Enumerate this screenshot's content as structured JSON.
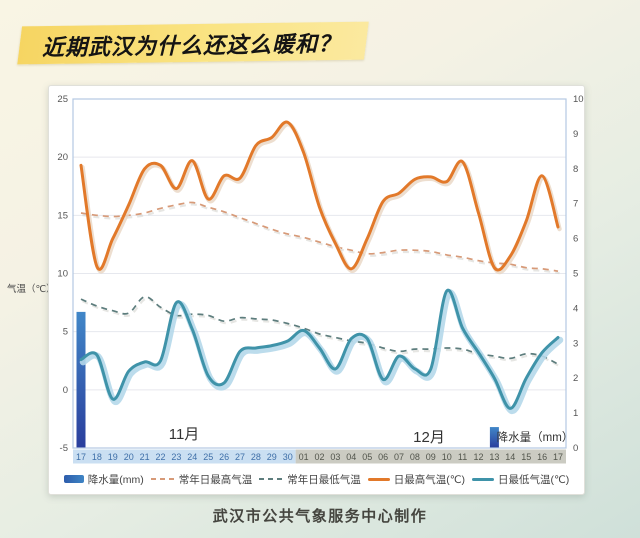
{
  "title": "近期武汉为什么还这么暖和？",
  "caption": "武汉市公共气象服务中心制作",
  "axes": {
    "temp_axis_label": "气温（℃）",
    "precip_axis_label": "降水量（mm）",
    "month_labels": {
      "november": "11月",
      "december": "12月"
    }
  },
  "legend": [
    {
      "label": "降水量(mm)",
      "type": "bar",
      "color": "#2e6cb5"
    },
    {
      "label": "常年日最高气温",
      "type": "dashed",
      "color": "#d79a78"
    },
    {
      "label": "常年日最低气温",
      "type": "dashed",
      "color": "#5d7d7d"
    },
    {
      "label": "日最高气温(℃)",
      "type": "line",
      "color": "#e2792a"
    },
    {
      "label": "日最低气温(℃)",
      "type": "line",
      "color": "#3f93a9"
    }
  ],
  "chart_data": {
    "type": "line+bar",
    "categories": [
      "17",
      "18",
      "19",
      "20",
      "21",
      "22",
      "23",
      "24",
      "25",
      "26",
      "27",
      "28",
      "29",
      "30",
      "01",
      "02",
      "03",
      "04",
      "05",
      "06",
      "07",
      "08",
      "09",
      "10",
      "11",
      "12",
      "13",
      "14",
      "15",
      "16",
      "17"
    ],
    "november_days": 14,
    "left_axis": {
      "label": "气温（℃）",
      "min": -5,
      "max": 25,
      "ticks": [
        25,
        20,
        15,
        10,
        5,
        0,
        -5
      ]
    },
    "right_axis": {
      "label": "降水量（mm）",
      "min": 0,
      "max": 10,
      "ticks": [
        10,
        9,
        8,
        7,
        6,
        5,
        4,
        3,
        2,
        1,
        0
      ]
    },
    "grid": "horizontal-only",
    "legend_position": "bottom",
    "series": [
      {
        "name": "日最高气温(℃)",
        "axis": "left",
        "style": "solid",
        "color": "#e2792a",
        "values": [
          19.3,
          10.6,
          13.0,
          15.9,
          19.0,
          19.3,
          17.3,
          19.7,
          16.4,
          18.4,
          18.2,
          21.0,
          21.7,
          23.0,
          20.4,
          15.7,
          12.6,
          10.4,
          13.0,
          16.2,
          16.9,
          18.1,
          18.3,
          17.9,
          19.6,
          15.2,
          10.5,
          11.5,
          14.5,
          18.4,
          14.0
        ]
      },
      {
        "name": "常年日最高气温",
        "axis": "left",
        "style": "dashed",
        "color": "#d79a78",
        "values": [
          15.2,
          15.0,
          14.9,
          15.0,
          15.2,
          15.6,
          15.9,
          16.1,
          15.7,
          15.3,
          14.8,
          14.3,
          13.8,
          13.4,
          13.1,
          12.7,
          12.3,
          12.0,
          11.7,
          11.8,
          12.0,
          12.0,
          11.9,
          11.6,
          11.4,
          11.1,
          10.9,
          10.8,
          10.5,
          10.4,
          10.2
        ]
      },
      {
        "name": "日最低气温(℃)",
        "axis": "left",
        "style": "solid",
        "color": "#3f93a9",
        "values": [
          2.6,
          3.0,
          -0.8,
          1.6,
          2.4,
          2.5,
          7.5,
          5.2,
          1.2,
          0.6,
          3.3,
          3.6,
          3.8,
          4.2,
          5.1,
          3.6,
          1.8,
          4.4,
          4.4,
          0.9,
          2.9,
          1.8,
          1.8,
          8.5,
          5.3,
          3.2,
          1.0,
          -1.6,
          1.0,
          3.2,
          4.5
        ]
      },
      {
        "name": "常年日最低气温",
        "axis": "left",
        "style": "dashed",
        "color": "#5d7d7d",
        "values": [
          7.8,
          7.2,
          6.8,
          6.6,
          8.0,
          7.1,
          6.4,
          6.5,
          6.4,
          5.9,
          6.2,
          6.1,
          6.0,
          5.7,
          5.3,
          4.8,
          4.5,
          4.2,
          4.0,
          3.6,
          3.3,
          3.5,
          3.5,
          3.6,
          3.5,
          3.1,
          2.9,
          2.7,
          3.1,
          2.9,
          2.2
        ]
      },
      {
        "name": "降水量(mm)",
        "axis": "right",
        "style": "bar",
        "color_top": "#4187c8",
        "color_bottom": "#2a3e9d",
        "values": [
          3.9,
          0,
          0,
          0,
          0,
          0,
          0,
          0,
          0,
          0,
          0,
          0,
          0,
          0,
          0,
          0,
          0,
          0,
          0,
          0,
          0,
          0,
          0,
          0,
          0,
          0,
          0.6,
          0,
          0,
          0,
          0
        ]
      }
    ],
    "colors": {
      "grid": "#e6e8ee",
      "plot_border": "#b3c9e2",
      "tick_text": "#555555",
      "nov_strip_bg": "#cadff2",
      "nov_strip_text": "#3f6fa8",
      "dec_strip_bg": "#cbcbc2",
      "dec_strip_text": "#52554c"
    }
  }
}
